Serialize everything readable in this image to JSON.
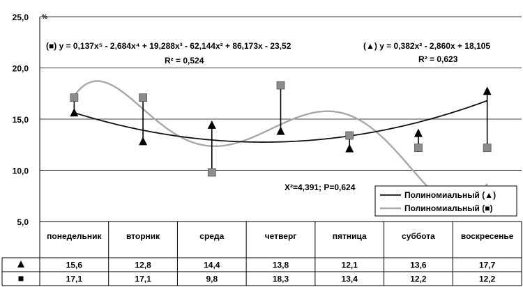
{
  "chart_data": {
    "type": "line",
    "categories": [
      "понедельник",
      "вторник",
      "среда",
      "четверг",
      "пятница",
      "суббота",
      "воскресенье"
    ],
    "ylim": [
      5.0,
      25.0
    ],
    "y_ticks": [
      "5,0",
      "10,0",
      "15,0",
      "20,0",
      "25,0"
    ],
    "y_unit": "%",
    "grid": true,
    "series": [
      {
        "marker": "triangle",
        "symbol": "▲",
        "values": [
          15.6,
          12.8,
          14.4,
          13.8,
          12.1,
          13.6,
          17.7
        ],
        "value_labels": [
          "15,6",
          "12,8",
          "14,4",
          "13,8",
          "12,1",
          "13,6",
          "17,7"
        ]
      },
      {
        "marker": "square",
        "symbol": "■",
        "values": [
          17.1,
          17.1,
          9.8,
          18.3,
          13.4,
          12.2,
          12.2
        ],
        "value_labels": [
          "17,1",
          "17,1",
          "9,8",
          "18,3",
          "13,4",
          "12,2",
          "12,2"
        ]
      }
    ],
    "trendlines": [
      {
        "series_marker": "triangle",
        "coefficients_desc": [
          0.382,
          -2.86,
          18.105
        ],
        "label": "(▲)  y = 0,382x² - 2,860x + 18,105",
        "r2_label": "R² = 0,623",
        "color": "#111111"
      },
      {
        "series_marker": "square",
        "coefficients_desc": [
          0.137,
          -2.684,
          19.288,
          -62.144,
          86.173,
          -23.52
        ],
        "label": "(■)  y = 0,137x⁵ - 2,684x⁴ + 19,288x³ - 62,144x² + 86,173x - 23,52",
        "r2_label": "R² = 0,524",
        "color": "#a8a8a8"
      }
    ],
    "annotation": "X²=4,391; P=0,624",
    "legend": {
      "placement": "bottom-right",
      "entries": [
        "Полиномиальный (▲)",
        "Полиномиальный (■)"
      ]
    },
    "colors": {
      "marker_fill": "#000000",
      "square_fill": "#8c8c8c",
      "grid": "#000000"
    }
  }
}
